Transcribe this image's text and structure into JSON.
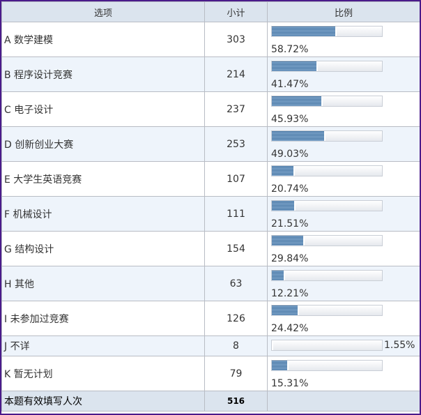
{
  "table": {
    "headers": [
      "选项",
      "小计",
      "比例"
    ],
    "rows": [
      {
        "label": "A 数学建模",
        "count": "303",
        "percent": "58.72%",
        "fraction": 0.5872
      },
      {
        "label": "B 程序设计竞赛",
        "count": "214",
        "percent": "41.47%",
        "fraction": 0.4147
      },
      {
        "label": "C 电子设计",
        "count": "237",
        "percent": "45.93%",
        "fraction": 0.4593
      },
      {
        "label": "D 创新创业大赛",
        "count": "253",
        "percent": "49.03%",
        "fraction": 0.4903
      },
      {
        "label": "E 大学生英语竞赛",
        "count": "107",
        "percent": "20.74%",
        "fraction": 0.2074
      },
      {
        "label": "F 机械设计",
        "count": "111",
        "percent": "21.51%",
        "fraction": 0.2151
      },
      {
        "label": "G 结构设计",
        "count": "154",
        "percent": "29.84%",
        "fraction": 0.2984
      },
      {
        "label": "H 其他",
        "count": "63",
        "percent": "12.21%",
        "fraction": 0.1221
      },
      {
        "label": "I 未参加过竞赛",
        "count": "126",
        "percent": "24.42%",
        "fraction": 0.2442
      },
      {
        "label": "J 不详",
        "count": "8",
        "percent": "1.55%",
        "fraction": 0.0155
      },
      {
        "label": "K 暂无计划",
        "count": "79",
        "percent": "15.31%",
        "fraction": 0.1531
      }
    ],
    "footer": {
      "label": "本题有效填写人次",
      "total": "516"
    }
  }
}
